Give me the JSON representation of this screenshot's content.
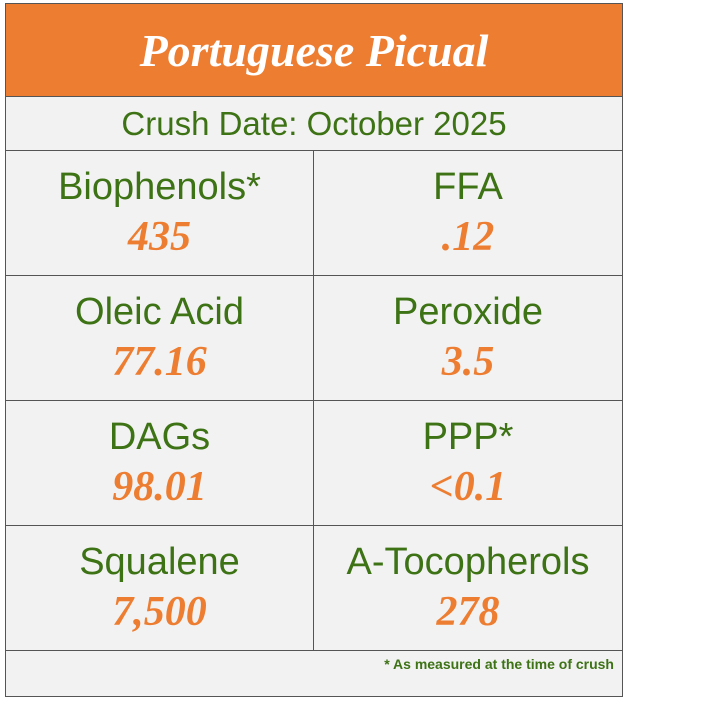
{
  "header": {
    "title": "Portuguese Picual",
    "subtitle": "Crush Date: October 2025"
  },
  "table": {
    "rows": [
      [
        {
          "label": "Biophenols*",
          "value": "435"
        },
        {
          "label": "FFA",
          "value": ".12"
        }
      ],
      [
        {
          "label": "Oleic Acid",
          "value": "77.16"
        },
        {
          "label": "Peroxide",
          "value": "3.5"
        }
      ],
      [
        {
          "label": "DAGs",
          "value": "98.01"
        },
        {
          "label": "PPP*",
          "value": "<0.1"
        }
      ],
      [
        {
          "label": "Squalene",
          "value": "7,500"
        },
        {
          "label": "A-Tocopherols",
          "value": "278"
        }
      ]
    ]
  },
  "footnote": "* As measured at the time of crush"
}
